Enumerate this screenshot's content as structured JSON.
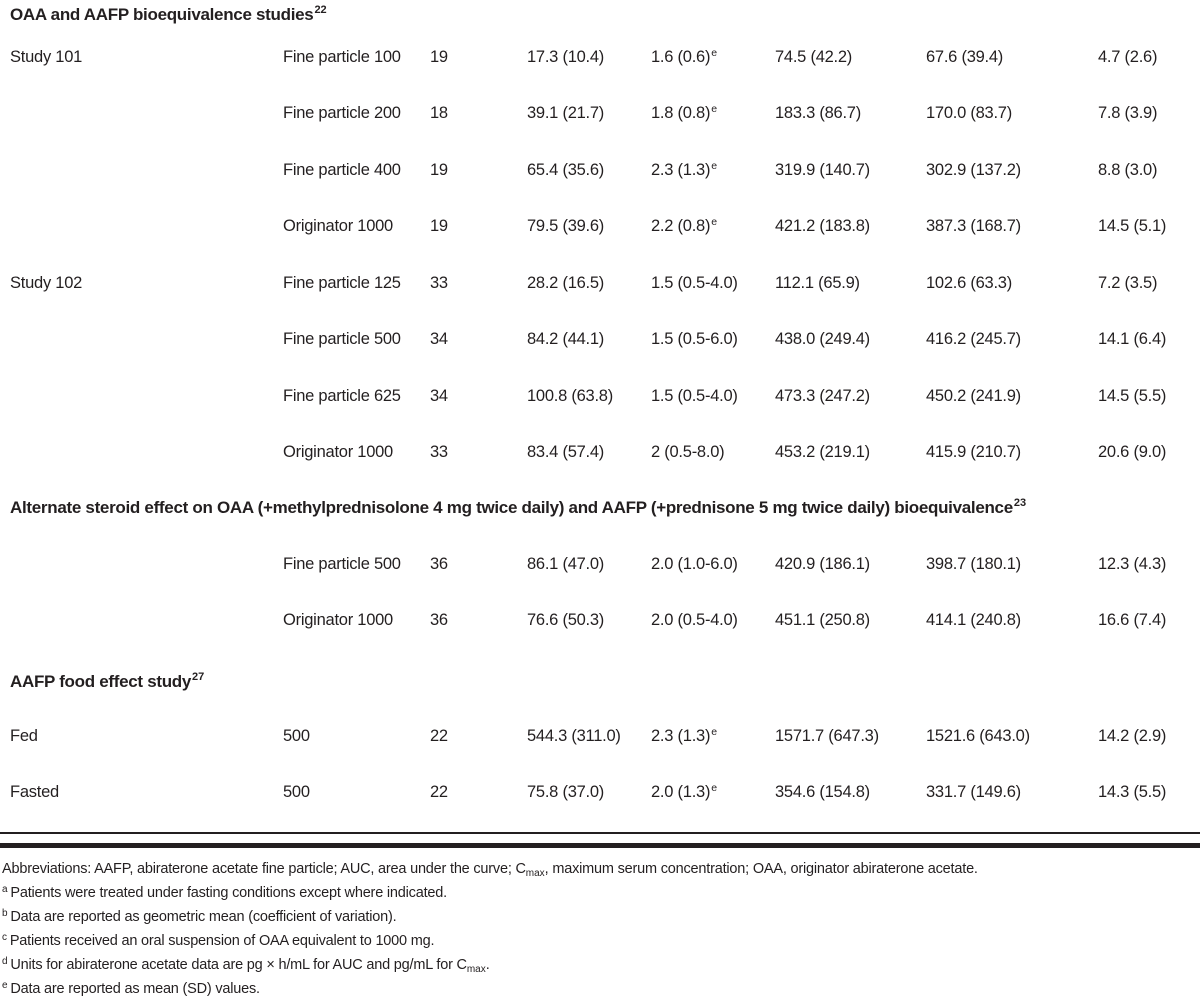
{
  "style": {
    "background": "#ffffff",
    "text_color": "#231f20"
  },
  "table": {
    "sections": [
      {
        "heading": "OAA and AAFP bioequivalence studies",
        "ref": "22",
        "rows": [
          {
            "study": "Study 101",
            "treatment": "Fine particle 100",
            "n": "19",
            "v1": "17.3 (10.4)",
            "v2": "1.6 (0.6)",
            "v2_note": "e",
            "v3": "74.5 (42.2)",
            "v4": "67.6 (39.4)",
            "v5": "4.7 (2.6)"
          },
          {
            "study": "",
            "treatment": "Fine particle 200",
            "n": "18",
            "v1": "39.1 (21.7)",
            "v2": "1.8 (0.8)",
            "v2_note": "e",
            "v3": "183.3 (86.7)",
            "v4": "170.0 (83.7)",
            "v5": "7.8 (3.9)"
          },
          {
            "study": "",
            "treatment": "Fine particle 400",
            "n": "19",
            "v1": "65.4 (35.6)",
            "v2": "2.3 (1.3)",
            "v2_note": "e",
            "v3": "319.9 (140.7)",
            "v4": "302.9 (137.2)",
            "v5": "8.8 (3.0)"
          },
          {
            "study": "",
            "treatment": "Originator 1000",
            "n": "19",
            "v1": "79.5 (39.6)",
            "v2": "2.2 (0.8)",
            "v2_note": "e",
            "v3": "421.2 (183.8)",
            "v4": "387.3 (168.7)",
            "v5": "14.5 (5.1)"
          },
          {
            "study": "Study 102",
            "treatment": "Fine particle 125",
            "n": "33",
            "v1": "28.2 (16.5)",
            "v2": "1.5 (0.5-4.0)",
            "v2_note": "",
            "v3": "112.1 (65.9)",
            "v4": "102.6 (63.3)",
            "v5": "7.2 (3.5)"
          },
          {
            "study": "",
            "treatment": "Fine particle 500",
            "n": "34",
            "v1": "84.2 (44.1)",
            "v2": "1.5 (0.5-6.0)",
            "v2_note": "",
            "v3": "438.0 (249.4)",
            "v4": "416.2 (245.7)",
            "v5": "14.1 (6.4)"
          },
          {
            "study": "",
            "treatment": "Fine particle 625",
            "n": "34",
            "v1": "100.8 (63.8)",
            "v2": "1.5 (0.5-4.0)",
            "v2_note": "",
            "v3": "473.3 (247.2)",
            "v4": "450.2 (241.9)",
            "v5": "14.5 (5.5)"
          },
          {
            "study": "",
            "treatment": "Originator 1000",
            "n": "33",
            "v1": "83.4 (57.4)",
            "v2": "2 (0.5-8.0)",
            "v2_note": "",
            "v3": "453.2 (219.1)",
            "v4": "415.9 (210.7)",
            "v5": "20.6 (9.0)"
          }
        ]
      },
      {
        "heading": "Alternate steroid effect on OAA (+methylprednisolone 4 mg twice daily) and AAFP (+prednisone 5 mg twice daily) bioequivalence",
        "ref": "23",
        "rows": [
          {
            "study": "",
            "treatment": "Fine particle 500",
            "n": "36",
            "v1": "86.1 (47.0)",
            "v2": "2.0 (1.0-6.0)",
            "v2_note": "",
            "v3": "420.9 (186.1)",
            "v4": "398.7 (180.1)",
            "v5": "12.3 (4.3)"
          },
          {
            "study": "",
            "treatment": "Originator 1000",
            "n": "36",
            "v1": "76.6 (50.3)",
            "v2": "2.0 (0.5-4.0)",
            "v2_note": "",
            "v3": "451.1 (250.8)",
            "v4": "414.1 (240.8)",
            "v5": "16.6 (7.4)"
          }
        ]
      },
      {
        "heading": "AAFP food effect study",
        "ref": "27",
        "rows": [
          {
            "study": "Fed",
            "treatment": "500",
            "n": "22",
            "v1": "544.3 (311.0)",
            "v2": "2.3 (1.3)",
            "v2_note": "e",
            "v3": "1571.7 (647.3)",
            "v4": "1521.6 (643.0)",
            "v5": "14.2 (2.9)"
          },
          {
            "study": "Fasted",
            "treatment": "500",
            "n": "22",
            "v1": "75.8 (37.0)",
            "v2": "2.0 (1.3)",
            "v2_note": "e",
            "v3": "354.6 (154.8)",
            "v4": "331.7 (149.6)",
            "v5": "14.3 (5.5)"
          }
        ]
      }
    ]
  },
  "footnotes": {
    "abbreviations": {
      "part1": "Abbreviations: AAFP, abiraterone acetate fine particle; AUC, area under the curve; C",
      "sub": "max",
      "part2": ", maximum serum concentration; OAA, originator abiraterone acetate."
    },
    "notes": [
      {
        "marker": "a",
        "text": "Patients were treated under fasting conditions except where indicated."
      },
      {
        "marker": "b",
        "text": "Data are reported as geometric mean (coefficient of variation)."
      },
      {
        "marker": "c",
        "text": "Patients received an oral suspension of OAA equivalent to 1000 mg."
      },
      {
        "marker": "d",
        "part1": "Units for abiraterone acetate data are pg × h/mL for AUC and pg/mL for C",
        "sub": "max",
        "part2": "."
      },
      {
        "marker": "e",
        "text": "Data are reported as mean (SD) values."
      }
    ]
  }
}
